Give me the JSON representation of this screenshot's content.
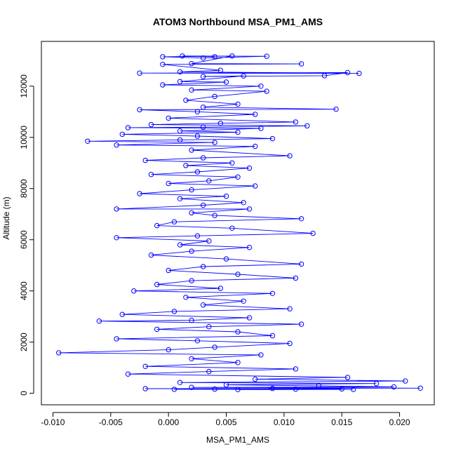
{
  "chart_data": {
    "type": "scatter",
    "title": "ATOM3 Northbound MSA_PM1_AMS",
    "xlabel": "MSA_PM1_AMS",
    "ylabel": "Altitude (m)",
    "xlim": [
      -0.011,
      0.023
    ],
    "ylim": [
      -450,
      13750
    ],
    "x_ticks": [
      -0.01,
      -0.005,
      0.0,
      0.005,
      0.01,
      0.015,
      0.02
    ],
    "x_tick_labels": [
      "-0.010",
      "-0.005",
      "0.000",
      "0.005",
      "0.010",
      "0.015",
      "0.020"
    ],
    "y_ticks": [
      0,
      2000,
      4000,
      6000,
      8000,
      10000,
      12000
    ],
    "y_tick_labels": [
      "0",
      "2000",
      "4000",
      "6000",
      "8000",
      "10000",
      "12000"
    ],
    "grid": false,
    "legend": "none",
    "marker": "open-circle",
    "connected": true,
    "series": [
      {
        "color": "#0000ff",
        "points": [
          [
            0.004,
            13150
          ],
          [
            0.0012,
            13180
          ],
          [
            0.0085,
            13170
          ],
          [
            0.003,
            13100
          ],
          [
            -0.0005,
            13150
          ],
          [
            0.0055,
            13180
          ],
          [
            0.002,
            12880
          ],
          [
            0.0115,
            12870
          ],
          [
            -0.0005,
            12850
          ],
          [
            0.0045,
            12620
          ],
          [
            0.001,
            12560
          ],
          [
            0.0165,
            12500
          ],
          [
            -0.0025,
            12510
          ],
          [
            0.0155,
            12530
          ],
          [
            0.0135,
            12410
          ],
          [
            0.003,
            12380
          ],
          [
            0.0065,
            12400
          ],
          [
            0.001,
            12180
          ],
          [
            0.005,
            12160
          ],
          [
            -0.0005,
            12050
          ],
          [
            0.008,
            12000
          ],
          [
            0.002,
            11850
          ],
          [
            0.0085,
            11800
          ],
          [
            0.004,
            11600
          ],
          [
            0.0015,
            11450
          ],
          [
            0.006,
            11300
          ],
          [
            0.003,
            11180
          ],
          [
            0.0145,
            11100
          ],
          [
            -0.0025,
            11080
          ],
          [
            0.0025,
            11000
          ],
          [
            0.0075,
            10900
          ],
          [
            0.0,
            10750
          ],
          [
            0.011,
            10600
          ],
          [
            0.0045,
            10550
          ],
          [
            -0.0015,
            10500
          ],
          [
            0.012,
            10450
          ],
          [
            0.003,
            10400
          ],
          [
            -0.0035,
            10380
          ],
          [
            0.008,
            10350
          ],
          [
            0.001,
            10250
          ],
          [
            0.006,
            10200
          ],
          [
            -0.004,
            10120
          ],
          [
            0.0025,
            10050
          ],
          [
            0.009,
            9950
          ],
          [
            0.001,
            9900
          ],
          [
            -0.007,
            9850
          ],
          [
            0.004,
            9800
          ],
          [
            -0.0045,
            9700
          ],
          [
            0.0075,
            9650
          ],
          [
            0.002,
            9500
          ],
          [
            0.0105,
            9280
          ],
          [
            0.003,
            9200
          ],
          [
            -0.002,
            9100
          ],
          [
            0.0055,
            9000
          ],
          [
            0.0015,
            8900
          ],
          [
            0.007,
            8800
          ],
          [
            0.0025,
            8650
          ],
          [
            -0.0015,
            8550
          ],
          [
            0.006,
            8450
          ],
          [
            0.0035,
            8300
          ],
          [
            0.0,
            8200
          ],
          [
            0.0075,
            8100
          ],
          [
            0.002,
            7950
          ],
          [
            -0.0025,
            7800
          ],
          [
            0.005,
            7700
          ],
          [
            0.001,
            7600
          ],
          [
            0.0065,
            7450
          ],
          [
            0.003,
            7350
          ],
          [
            -0.0045,
            7200
          ],
          [
            0.007,
            7200
          ],
          [
            0.002,
            7050
          ],
          [
            0.004,
            6950
          ],
          [
            0.0115,
            6820
          ],
          [
            0.0005,
            6700
          ],
          [
            -0.001,
            6550
          ],
          [
            0.0055,
            6450
          ],
          [
            0.0125,
            6250
          ],
          [
            0.0025,
            6150
          ],
          [
            -0.0045,
            6080
          ],
          [
            0.0035,
            5950
          ],
          [
            0.001,
            5800
          ],
          [
            0.007,
            5700
          ],
          [
            0.002,
            5550
          ],
          [
            -0.0015,
            5400
          ],
          [
            0.005,
            5250
          ],
          [
            0.0115,
            5050
          ],
          [
            0.003,
            4950
          ],
          [
            0.0,
            4800
          ],
          [
            0.006,
            4650
          ],
          [
            0.011,
            4500
          ],
          [
            0.002,
            4400
          ],
          [
            -0.001,
            4250
          ],
          [
            0.0045,
            4100
          ],
          [
            -0.003,
            4000
          ],
          [
            0.009,
            3900
          ],
          [
            0.0015,
            3750
          ],
          [
            0.0065,
            3600
          ],
          [
            0.003,
            3450
          ],
          [
            0.0105,
            3300
          ],
          [
            0.0005,
            3200
          ],
          [
            -0.004,
            3080
          ],
          [
            0.007,
            2950
          ],
          [
            0.002,
            2850
          ],
          [
            -0.006,
            2820
          ],
          [
            0.0115,
            2700
          ],
          [
            0.0035,
            2600
          ],
          [
            -0.001,
            2500
          ],
          [
            0.006,
            2400
          ],
          [
            0.009,
            2250
          ],
          [
            -0.0045,
            2130
          ],
          [
            0.0025,
            2050
          ],
          [
            0.0105,
            1950
          ],
          [
            0.004,
            1800
          ],
          [
            0.0,
            1700
          ],
          [
            -0.0095,
            1580
          ],
          [
            0.008,
            1500
          ],
          [
            0.002,
            1350
          ],
          [
            0.006,
            1200
          ],
          [
            -0.002,
            1050
          ],
          [
            0.011,
            950
          ],
          [
            0.0035,
            850
          ],
          [
            -0.0035,
            750
          ],
          [
            0.0155,
            620
          ],
          [
            0.0075,
            550
          ],
          [
            0.0205,
            480
          ],
          [
            0.001,
            420
          ],
          [
            0.018,
            380
          ],
          [
            0.005,
            330
          ],
          [
            0.013,
            290
          ],
          [
            0.0195,
            250
          ],
          [
            0.002,
            230
          ],
          [
            0.0218,
            200
          ],
          [
            0.009,
            190
          ],
          [
            -0.002,
            180
          ],
          [
            0.015,
            170
          ],
          [
            0.004,
            165
          ],
          [
            0.011,
            160
          ],
          [
            0.0005,
            155
          ],
          [
            0.016,
            150
          ],
          [
            0.006,
            145
          ]
        ]
      }
    ]
  }
}
